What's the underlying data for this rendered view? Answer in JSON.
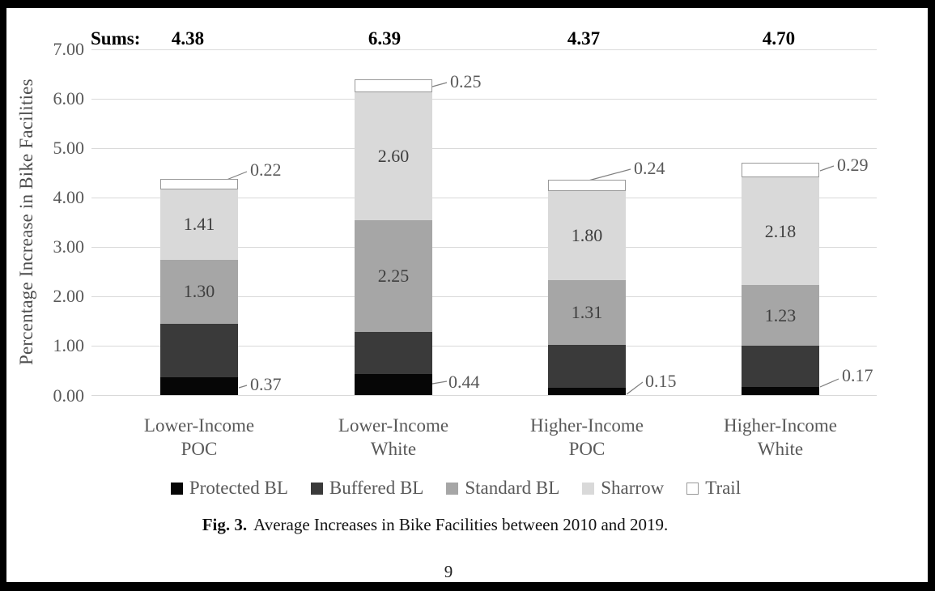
{
  "figure": {
    "caption_label": "Fig. 3.",
    "caption_text": "Average Increases in Bike Facilities between 2010 and 2019.",
    "page_number": "9"
  },
  "chart_data": {
    "type": "bar",
    "subtype": "stacked-column",
    "title": "",
    "xlabel": "",
    "ylabel": "Percentage Increase in Bike Facilities",
    "ylim": [
      0,
      7
    ],
    "ytick_interval": 1,
    "ytick_labels": [
      "0.00",
      "1.00",
      "2.00",
      "3.00",
      "4.00",
      "5.00",
      "6.00",
      "7.00"
    ],
    "grid": "horizontal",
    "legend_position": "bottom",
    "categories": [
      "Lower-Income POC",
      "Lower-Income White",
      "Higher-Income POC",
      "Higher-Income White"
    ],
    "category_lines": [
      [
        "Lower-Income",
        "POC"
      ],
      [
        "Lower-Income",
        "White"
      ],
      [
        "Higher-Income",
        "POC"
      ],
      [
        "Higher-Income",
        "White"
      ]
    ],
    "sums_label": "Sums:",
    "sums": [
      "4.38",
      "6.39",
      "4.37",
      "4.70"
    ],
    "series": [
      {
        "name": "Protected BL",
        "color": "#060606",
        "values": [
          0.37,
          0.44,
          0.15,
          0.17
        ],
        "data_labels": [
          "0.37",
          "0.44",
          "0.15",
          "0.17"
        ],
        "label_placement": "callout-bottom"
      },
      {
        "name": "Buffered BL",
        "color": "#3a3a3a",
        "values": [
          1.08,
          0.85,
          0.87,
          0.83
        ],
        "data_labels": null,
        "label_placement": "none"
      },
      {
        "name": "Standard BL",
        "color": "#a6a6a6",
        "values": [
          1.3,
          2.25,
          1.31,
          1.23
        ],
        "data_labels": [
          "1.30",
          "2.25",
          "1.31",
          "1.23"
        ],
        "label_placement": "inside"
      },
      {
        "name": "Sharrow",
        "color": "#d9d9d9",
        "values": [
          1.41,
          2.6,
          1.8,
          2.18
        ],
        "data_labels": [
          "1.41",
          "2.60",
          "1.80",
          "2.18"
        ],
        "label_placement": "inside"
      },
      {
        "name": "Trail",
        "color": "#ffffff",
        "border_color": "#999999",
        "values": [
          0.22,
          0.25,
          0.24,
          0.29
        ],
        "data_labels": [
          "0.22",
          "0.25",
          "0.24",
          "0.29"
        ],
        "label_placement": "callout-top"
      }
    ],
    "colors": {
      "axis_text": "#595959",
      "gridline": "#d9d9d9",
      "inside_label": "#3f3f3f",
      "callout_label": "#595959",
      "leader_line": "#7f7f7f",
      "sum_text": "#000000"
    }
  }
}
